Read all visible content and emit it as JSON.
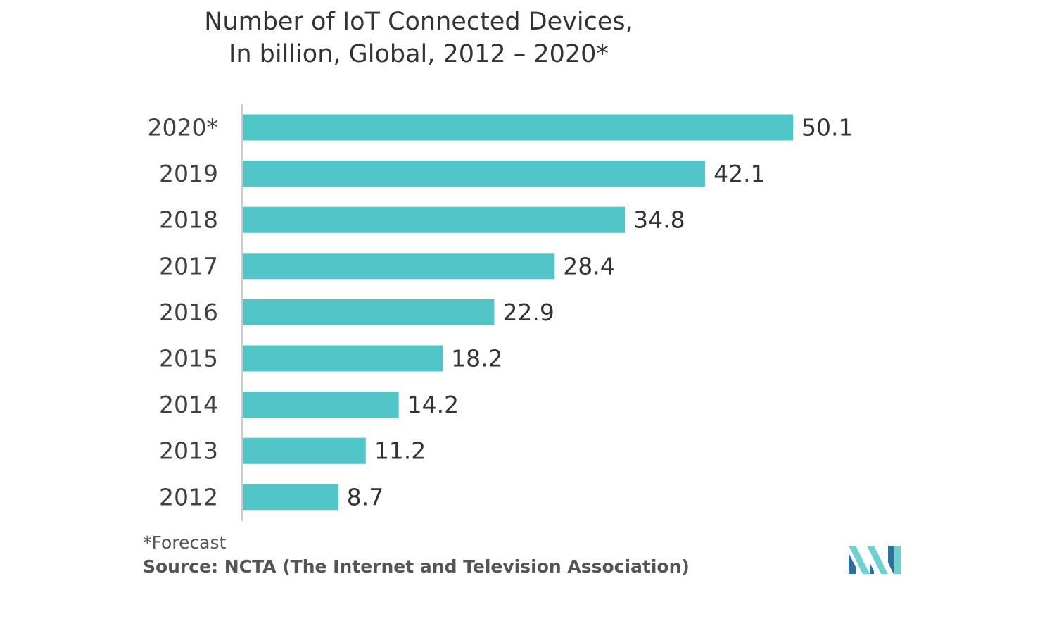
{
  "chart_data": {
    "type": "bar",
    "orientation": "horizontal",
    "title_lines": [
      "Number of IoT Connected Devices,",
      "In billion, Global, 2012 – 2020*"
    ],
    "categories": [
      "2020*",
      "2019",
      "2018",
      "2017",
      "2016",
      "2015",
      "2014",
      "2013",
      "2012"
    ],
    "values": [
      50.1,
      42.1,
      34.8,
      28.4,
      22.9,
      18.2,
      14.2,
      11.2,
      8.7
    ],
    "value_labels": [
      "50.1",
      "42.1",
      "34.8",
      "28.4",
      "22.9",
      "18.2",
      "14.2",
      "11.2",
      "8.7"
    ],
    "xlim": [
      0,
      50.1
    ],
    "xlabel": "",
    "ylabel": "",
    "grid": false,
    "legend": "none",
    "bar_color": "#52c5c9"
  },
  "footnote": "*Forecast",
  "source": "Source: NCTA (The Internet and Television Association)",
  "logo": {
    "icon": "mordor-intelligence-logo",
    "color_light": "#6fd0d2",
    "color_dark": "#2f6f99"
  }
}
